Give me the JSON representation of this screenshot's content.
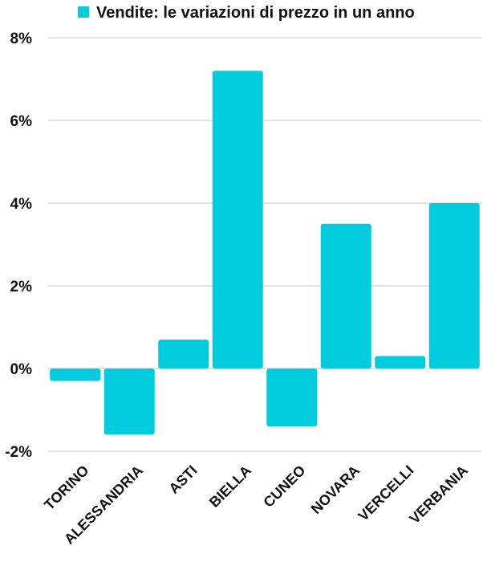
{
  "chart_data": {
    "type": "bar",
    "categories": [
      "TORINO",
      "ALESSANDRIA",
      "ASTI",
      "BIELLA",
      "CUNEO",
      "NOVARA",
      "VERCELLI",
      "VERBANIA"
    ],
    "series": [
      {
        "name": "Vendite: le variazioni di prezzo in un anno",
        "values": [
          -0.3,
          -1.6,
          0.7,
          7.2,
          -1.4,
          3.5,
          0.3,
          4.0
        ],
        "color": "#00CCDD"
      }
    ],
    "yticks": [
      "8%",
      "6%",
      "4%",
      "2%",
      "0%",
      "-2%"
    ],
    "ylim": [
      -2,
      8
    ],
    "grid": true,
    "legend": "top"
  }
}
